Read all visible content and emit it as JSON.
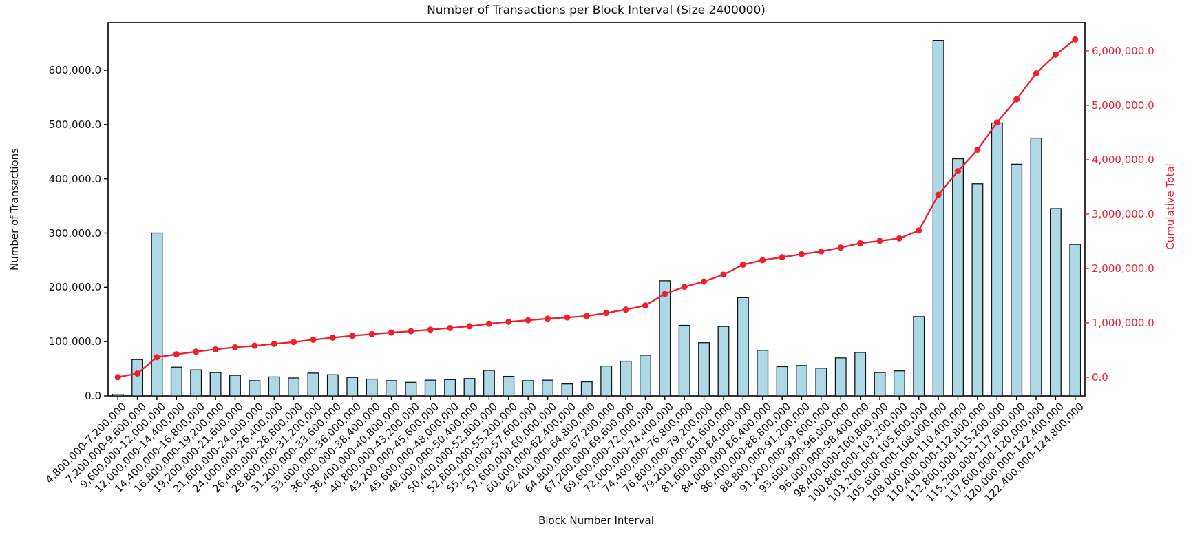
{
  "title": "Number of Transactions per Block Interval (Size 2400000)",
  "x_axis_label": "Block Number Interval",
  "y_left_axis_label": "Number of Transactions",
  "y_right_axis_label": "Cumulative Total",
  "colors": {
    "background": "#ffffff",
    "bar_fill": "#add8e6",
    "bar_edge": "#141414",
    "line_red": "#f01e2e",
    "axis_black": "#000000",
    "text": "#111111"
  },
  "chart_data": {
    "type": "bar",
    "title": "Number of Transactions per Block Interval (Size 2400000)",
    "xlabel": "Block Number Interval",
    "ylabel_left": "Number of Transactions",
    "ylabel_right": "Cumulative Total",
    "legend_position": "none",
    "grid": false,
    "x_tick_rotation_deg": 45,
    "y_left_ticks": [
      "0.0",
      "100,000.0",
      "200,000.0",
      "300,000.0",
      "400,000.0",
      "500,000.0",
      "600,000.0"
    ],
    "y_right_ticks": [
      "0.0",
      "1,000,000.0",
      "2,000,000.0",
      "3,000,000.0",
      "4,000,000.0",
      "5,000,000.0",
      "6,000,000.0"
    ],
    "y_left_range": [
      0,
      687000
    ],
    "y_right_range": [
      -342000,
      6519000
    ],
    "categories": [
      "4,800,000-7,200,000",
      "7,200,000-9,600,000",
      "9,600,000-12,000,000",
      "12,000,000-14,400,000",
      "14,400,000-16,800,000",
      "16,800,000-19,200,000",
      "19,200,000-21,600,000",
      "21,600,000-24,000,000",
      "24,000,000-26,400,000",
      "26,400,000-28,800,000",
      "28,800,000-31,200,000",
      "31,200,000-33,600,000",
      "33,600,000-36,000,000",
      "36,000,000-38,400,000",
      "38,400,000-40,800,000",
      "40,800,000-43,200,000",
      "43,200,000-45,600,000",
      "45,600,000-48,000,000",
      "48,000,000-50,400,000",
      "50,400,000-52,800,000",
      "52,800,000-55,200,000",
      "55,200,000-57,600,000",
      "57,600,000-60,000,000",
      "60,000,000-62,400,000",
      "62,400,000-64,800,000",
      "64,800,000-67,200,000",
      "67,200,000-69,600,000",
      "69,600,000-72,000,000",
      "72,000,000-74,400,000",
      "74,400,000-76,800,000",
      "76,800,000-79,200,000",
      "79,200,000-81,600,000",
      "81,600,000-84,000,000",
      "84,000,000-86,400,000",
      "86,400,000-88,800,000",
      "88,800,000-91,200,000",
      "91,200,000-93,600,000",
      "93,600,000-96,000,000",
      "96,000,000-98,400,000",
      "98,400,000-100,800,000",
      "100,800,000-103,200,000",
      "103,200,000-105,600,000",
      "105,600,000-108,000,000",
      "108,000,000-110,400,000",
      "110,400,000-112,800,000",
      "112,800,000-115,200,000",
      "115,200,000-117,600,000",
      "117,600,000-120,000,000",
      "120,000,000-122,400,000",
      "122,400,000-124,800,000"
    ],
    "series": [
      {
        "name": "Number of Transactions",
        "type": "bar",
        "axis": "left",
        "values": [
          3000,
          67000,
          300000,
          53000,
          48000,
          43000,
          38000,
          28000,
          35000,
          33000,
          42000,
          39000,
          34000,
          31000,
          28000,
          25000,
          29000,
          30000,
          32000,
          47000,
          36000,
          28000,
          29000,
          22000,
          26000,
          55000,
          64000,
          75000,
          212000,
          130000,
          98000,
          128000,
          181000,
          84000,
          54000,
          56000,
          51000,
          70000,
          80000,
          43000,
          46000,
          146000,
          655000,
          437000,
          391000,
          503000,
          427000,
          475000,
          345000,
          279000
        ]
      },
      {
        "name": "Cumulative Total",
        "type": "line",
        "axis": "right",
        "values": [
          3000,
          70000,
          370000,
          423000,
          471000,
          514000,
          552000,
          580000,
          615000,
          648000,
          690000,
          729000,
          763000,
          794000,
          822000,
          847000,
          876000,
          906000,
          938000,
          985000,
          1021000,
          1049000,
          1078000,
          1100000,
          1126000,
          1181000,
          1245000,
          1320000,
          1532000,
          1662000,
          1760000,
          1888000,
          2069000,
          2153000,
          2207000,
          2263000,
          2314000,
          2384000,
          2464000,
          2507000,
          2553000,
          2699000,
          3354000,
          3791000,
          4182000,
          4685000,
          5112000,
          5587000,
          5932000,
          6211000
        ]
      }
    ]
  }
}
